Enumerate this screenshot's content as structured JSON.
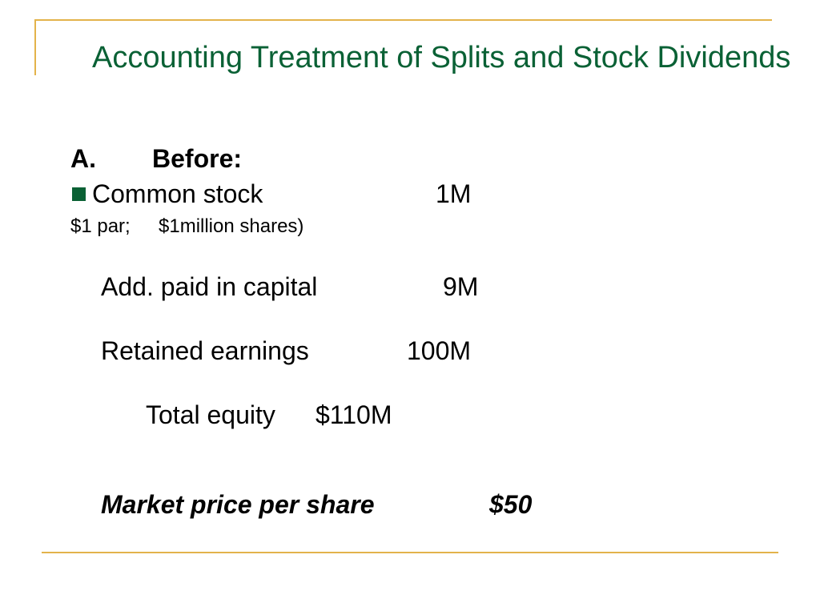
{
  "colors": {
    "title": "#0a6135",
    "rule": "#e3b34b",
    "bullet": "#0a6135"
  },
  "slide": {
    "title": "Accounting Treatment of Splits and Stock Dividends",
    "section_letter": "A.",
    "section_label": "Before:",
    "bullet_icon": "square-bullet",
    "common_stock": {
      "label": "Common stock",
      "value": "1M"
    },
    "par_note": {
      "part1": "$1 par;",
      "part2": "$1million shares)"
    },
    "apic": {
      "label": "Add. paid in capital",
      "value": "9M"
    },
    "retained": {
      "label": "Retained earnings",
      "value": "100M"
    },
    "total": {
      "label": "Total equity",
      "value": "$110M"
    },
    "market": {
      "label": "Market price per share",
      "value": "$50"
    }
  }
}
